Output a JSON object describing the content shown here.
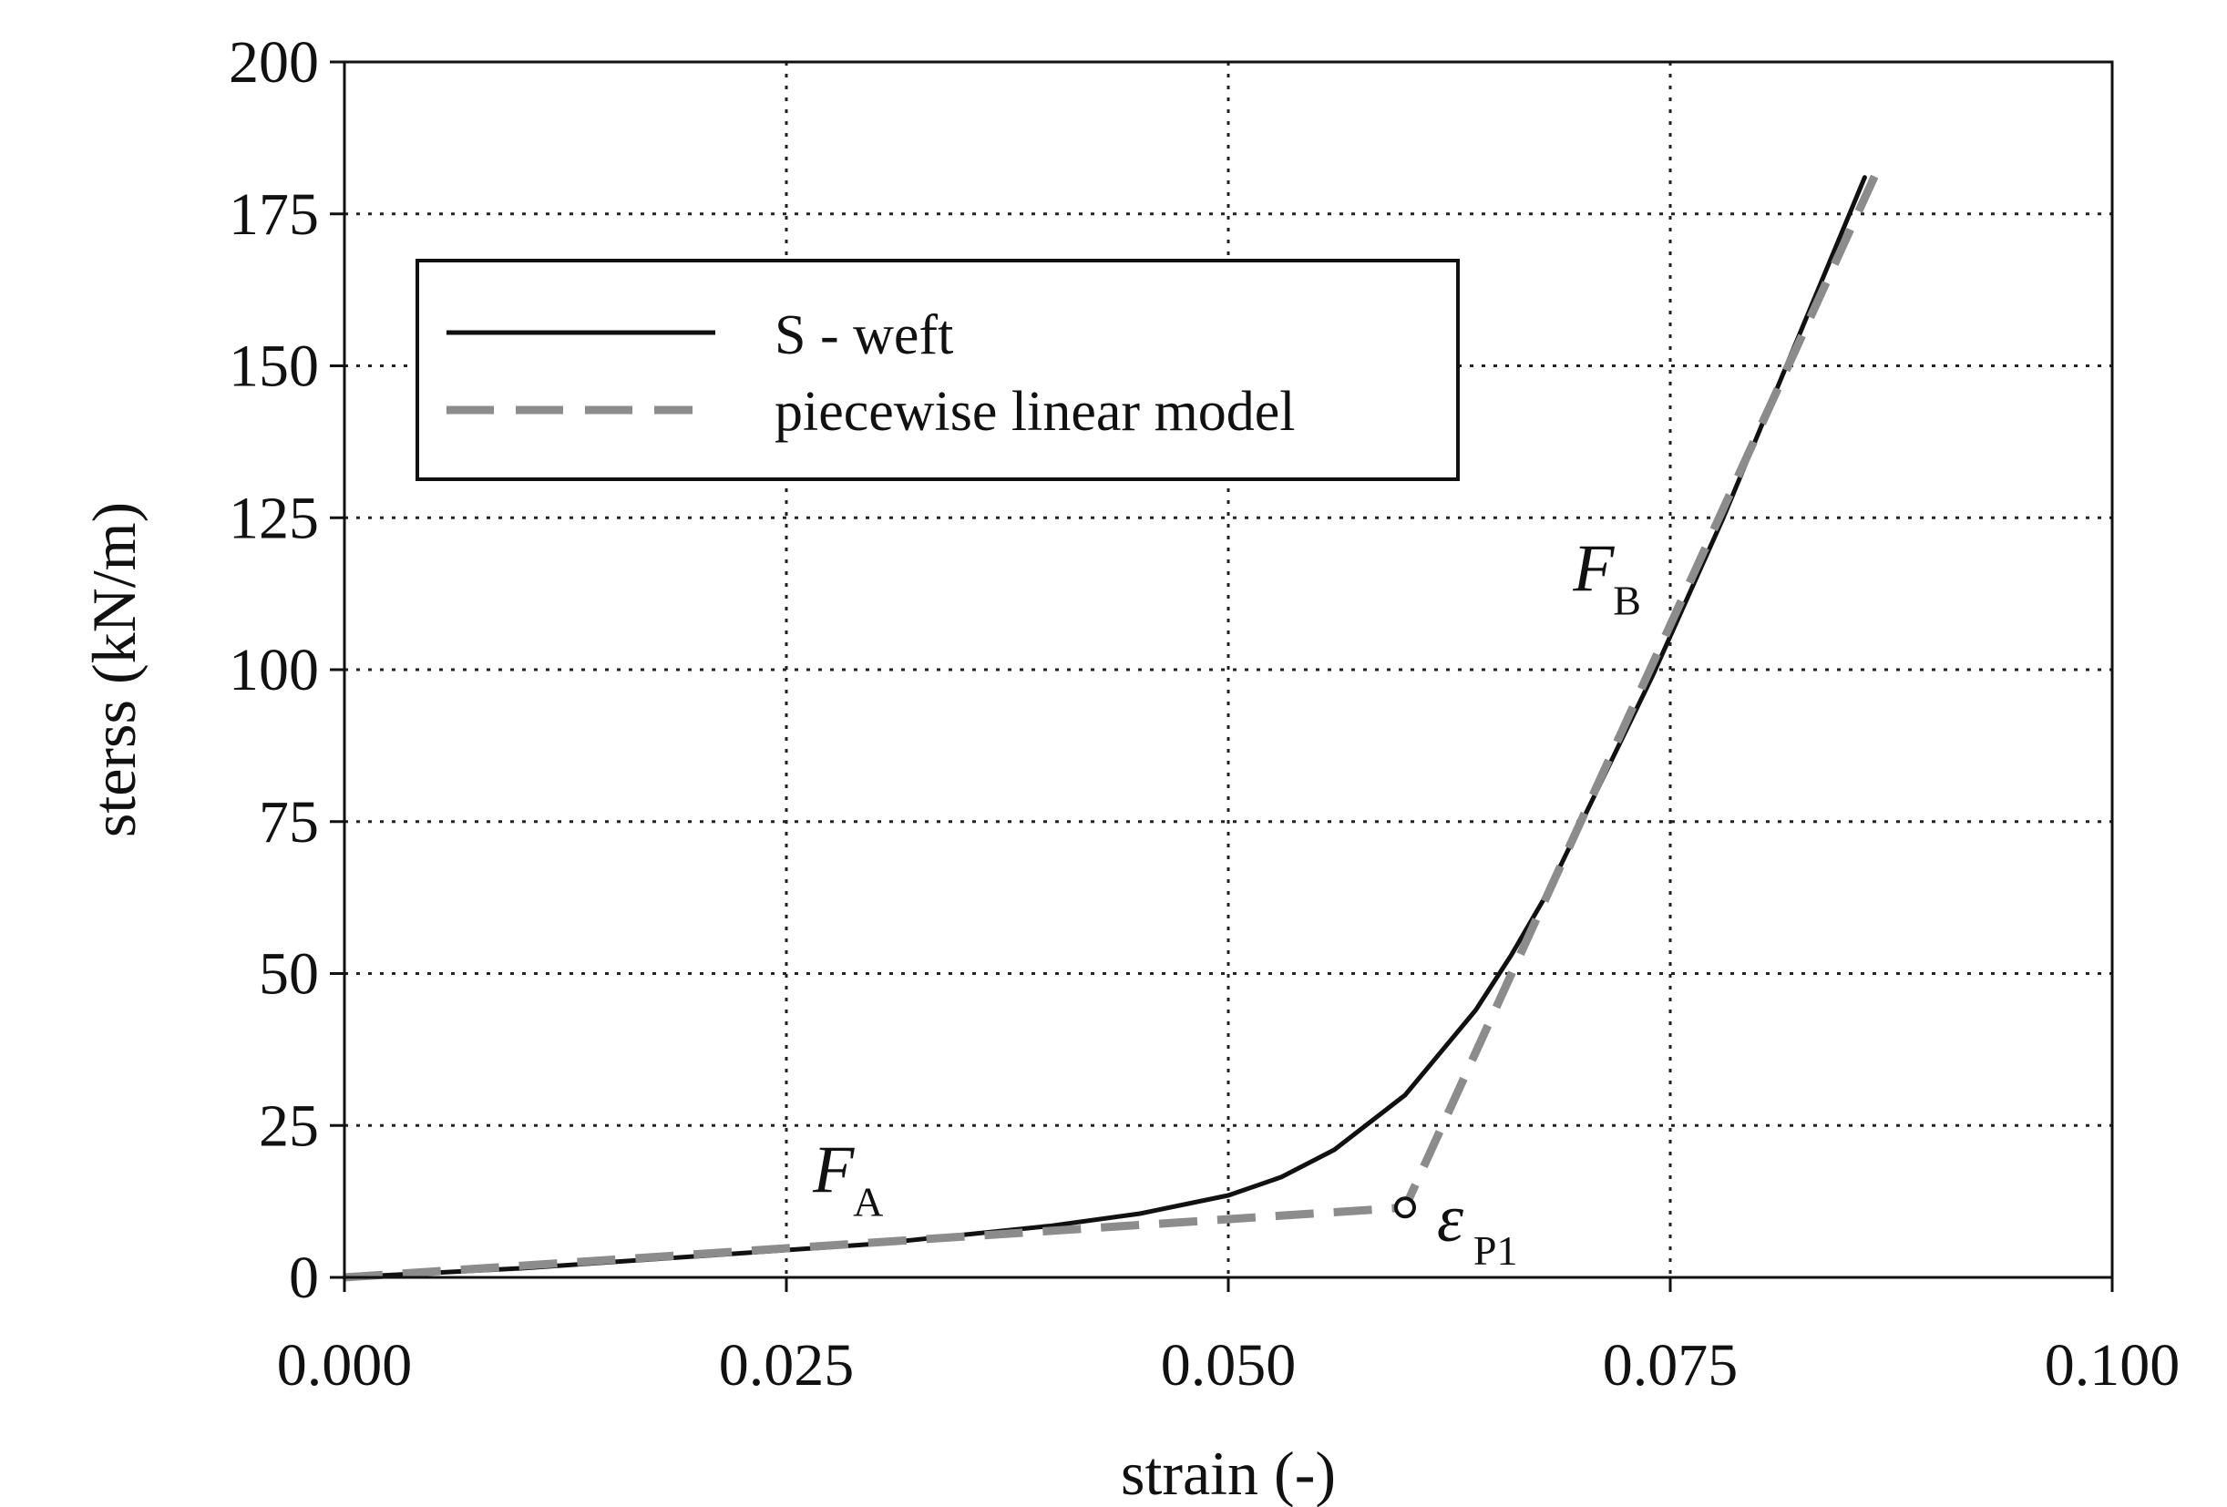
{
  "chart_data": {
    "type": "line",
    "title": "",
    "xlabel": "strain (-)",
    "ylabel": "sterss (kN/m)",
    "xlim": [
      0.0,
      0.1
    ],
    "ylim": [
      0,
      200
    ],
    "x_ticks": [
      "0.000",
      "0.025",
      "0.050",
      "0.075",
      "0.100"
    ],
    "y_ticks": [
      "0",
      "25",
      "50",
      "75",
      "100",
      "125",
      "150",
      "175",
      "200"
    ],
    "x_tick_values": [
      0.0,
      0.025,
      0.05,
      0.075,
      0.1
    ],
    "y_tick_values": [
      0,
      25,
      50,
      75,
      100,
      125,
      150,
      175,
      200
    ],
    "grid": true,
    "legend_position": "top-left",
    "series": [
      {
        "name": "S - weft",
        "style": "solid",
        "color": "#111111",
        "x": [
          0.0,
          0.01,
          0.02,
          0.03,
          0.04,
          0.045,
          0.05,
          0.053,
          0.056,
          0.058,
          0.06,
          0.062,
          0.064,
          0.066,
          0.068,
          0.07,
          0.072,
          0.074,
          0.076,
          0.078,
          0.08,
          0.082,
          0.084,
          0.086
        ],
        "y": [
          0,
          1.5,
          3.5,
          5.5,
          8.5,
          10.5,
          13.5,
          16.5,
          21,
          25.5,
          30,
          37,
          44,
          53,
          63,
          75,
          87,
          99,
          112,
          125,
          139,
          153,
          167,
          181
        ]
      },
      {
        "name": "piecewise linear model",
        "style": "dashed",
        "color": "#8c8c8c",
        "x": [
          0.0,
          0.06,
          0.06,
          0.087
        ],
        "y": [
          0,
          11.5,
          11.5,
          184
        ]
      }
    ],
    "annotations": [
      {
        "label": "F",
        "subscript": "A",
        "x": 0.0265,
        "y": 14
      },
      {
        "label": "F",
        "subscript": "B",
        "x": 0.0695,
        "y": 113
      },
      {
        "label": "ε",
        "subscript": "P1",
        "x": 0.0618,
        "y": 6,
        "marker_x": 0.06,
        "marker_y": 11.5
      }
    ]
  }
}
